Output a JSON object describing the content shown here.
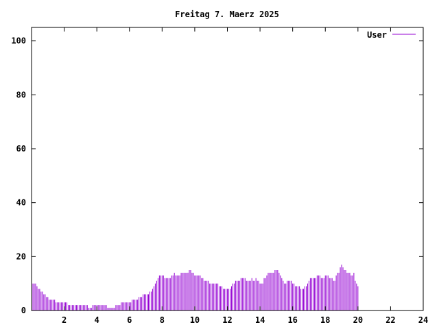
{
  "chart_data": {
    "type": "bar",
    "title": "Freitag 7. Maerz 2025",
    "xlabel": "",
    "ylabel": "",
    "xlim": [
      0,
      24
    ],
    "ylim": [
      0,
      105
    ],
    "xticks": [
      2,
      4,
      6,
      8,
      10,
      12,
      14,
      16,
      18,
      20,
      22,
      24
    ],
    "yticks": [
      0,
      20,
      40,
      60,
      80,
      100
    ],
    "grid": false,
    "legend_position": "top-right",
    "series": [
      {
        "name": "User",
        "color": "#9400d3",
        "interval_minutes": 5,
        "values": [
          11,
          10,
          10,
          10,
          9,
          8,
          8,
          7,
          7,
          6,
          6,
          5,
          5,
          4,
          4,
          4,
          4,
          4,
          3,
          3,
          3,
          3,
          3,
          3,
          3,
          3,
          3,
          2,
          2,
          2,
          2,
          2,
          2,
          2,
          2,
          2,
          2,
          2,
          2,
          2,
          2,
          2,
          1,
          1,
          1,
          2,
          2,
          2,
          2,
          2,
          2,
          2,
          2,
          2,
          2,
          2,
          1,
          1,
          1,
          1,
          1,
          1,
          2,
          2,
          2,
          2,
          3,
          3,
          3,
          3,
          3,
          3,
          3,
          3,
          4,
          4,
          4,
          4,
          4,
          5,
          5,
          5,
          6,
          6,
          6,
          6,
          6,
          7,
          7,
          8,
          9,
          10,
          11,
          12,
          13,
          13,
          13,
          13,
          12,
          12,
          12,
          12,
          12,
          13,
          13,
          14,
          13,
          13,
          13,
          13,
          14,
          14,
          14,
          14,
          14,
          14,
          15,
          15,
          14,
          14,
          13,
          13,
          13,
          13,
          13,
          12,
          12,
          11,
          11,
          11,
          11,
          10,
          10,
          10,
          10,
          10,
          10,
          10,
          9,
          9,
          9,
          8,
          8,
          8,
          8,
          8,
          8,
          9,
          10,
          10,
          11,
          11,
          11,
          11,
          12,
          12,
          12,
          12,
          11,
          11,
          11,
          11,
          12,
          11,
          11,
          12,
          11,
          11,
          10,
          10,
          10,
          12,
          12,
          13,
          14,
          14,
          14,
          14,
          14,
          15,
          15,
          15,
          14,
          13,
          12,
          11,
          10,
          10,
          11,
          11,
          11,
          11,
          10,
          10,
          9,
          9,
          9,
          9,
          8,
          8,
          8,
          9,
          9,
          10,
          11,
          12,
          12,
          12,
          12,
          12,
          13,
          13,
          13,
          12,
          12,
          12,
          13,
          13,
          13,
          12,
          12,
          12,
          11,
          11,
          13,
          14,
          14,
          16,
          17,
          16,
          15,
          15,
          14,
          14,
          14,
          13,
          13,
          14,
          11,
          10,
          9
        ]
      }
    ]
  }
}
